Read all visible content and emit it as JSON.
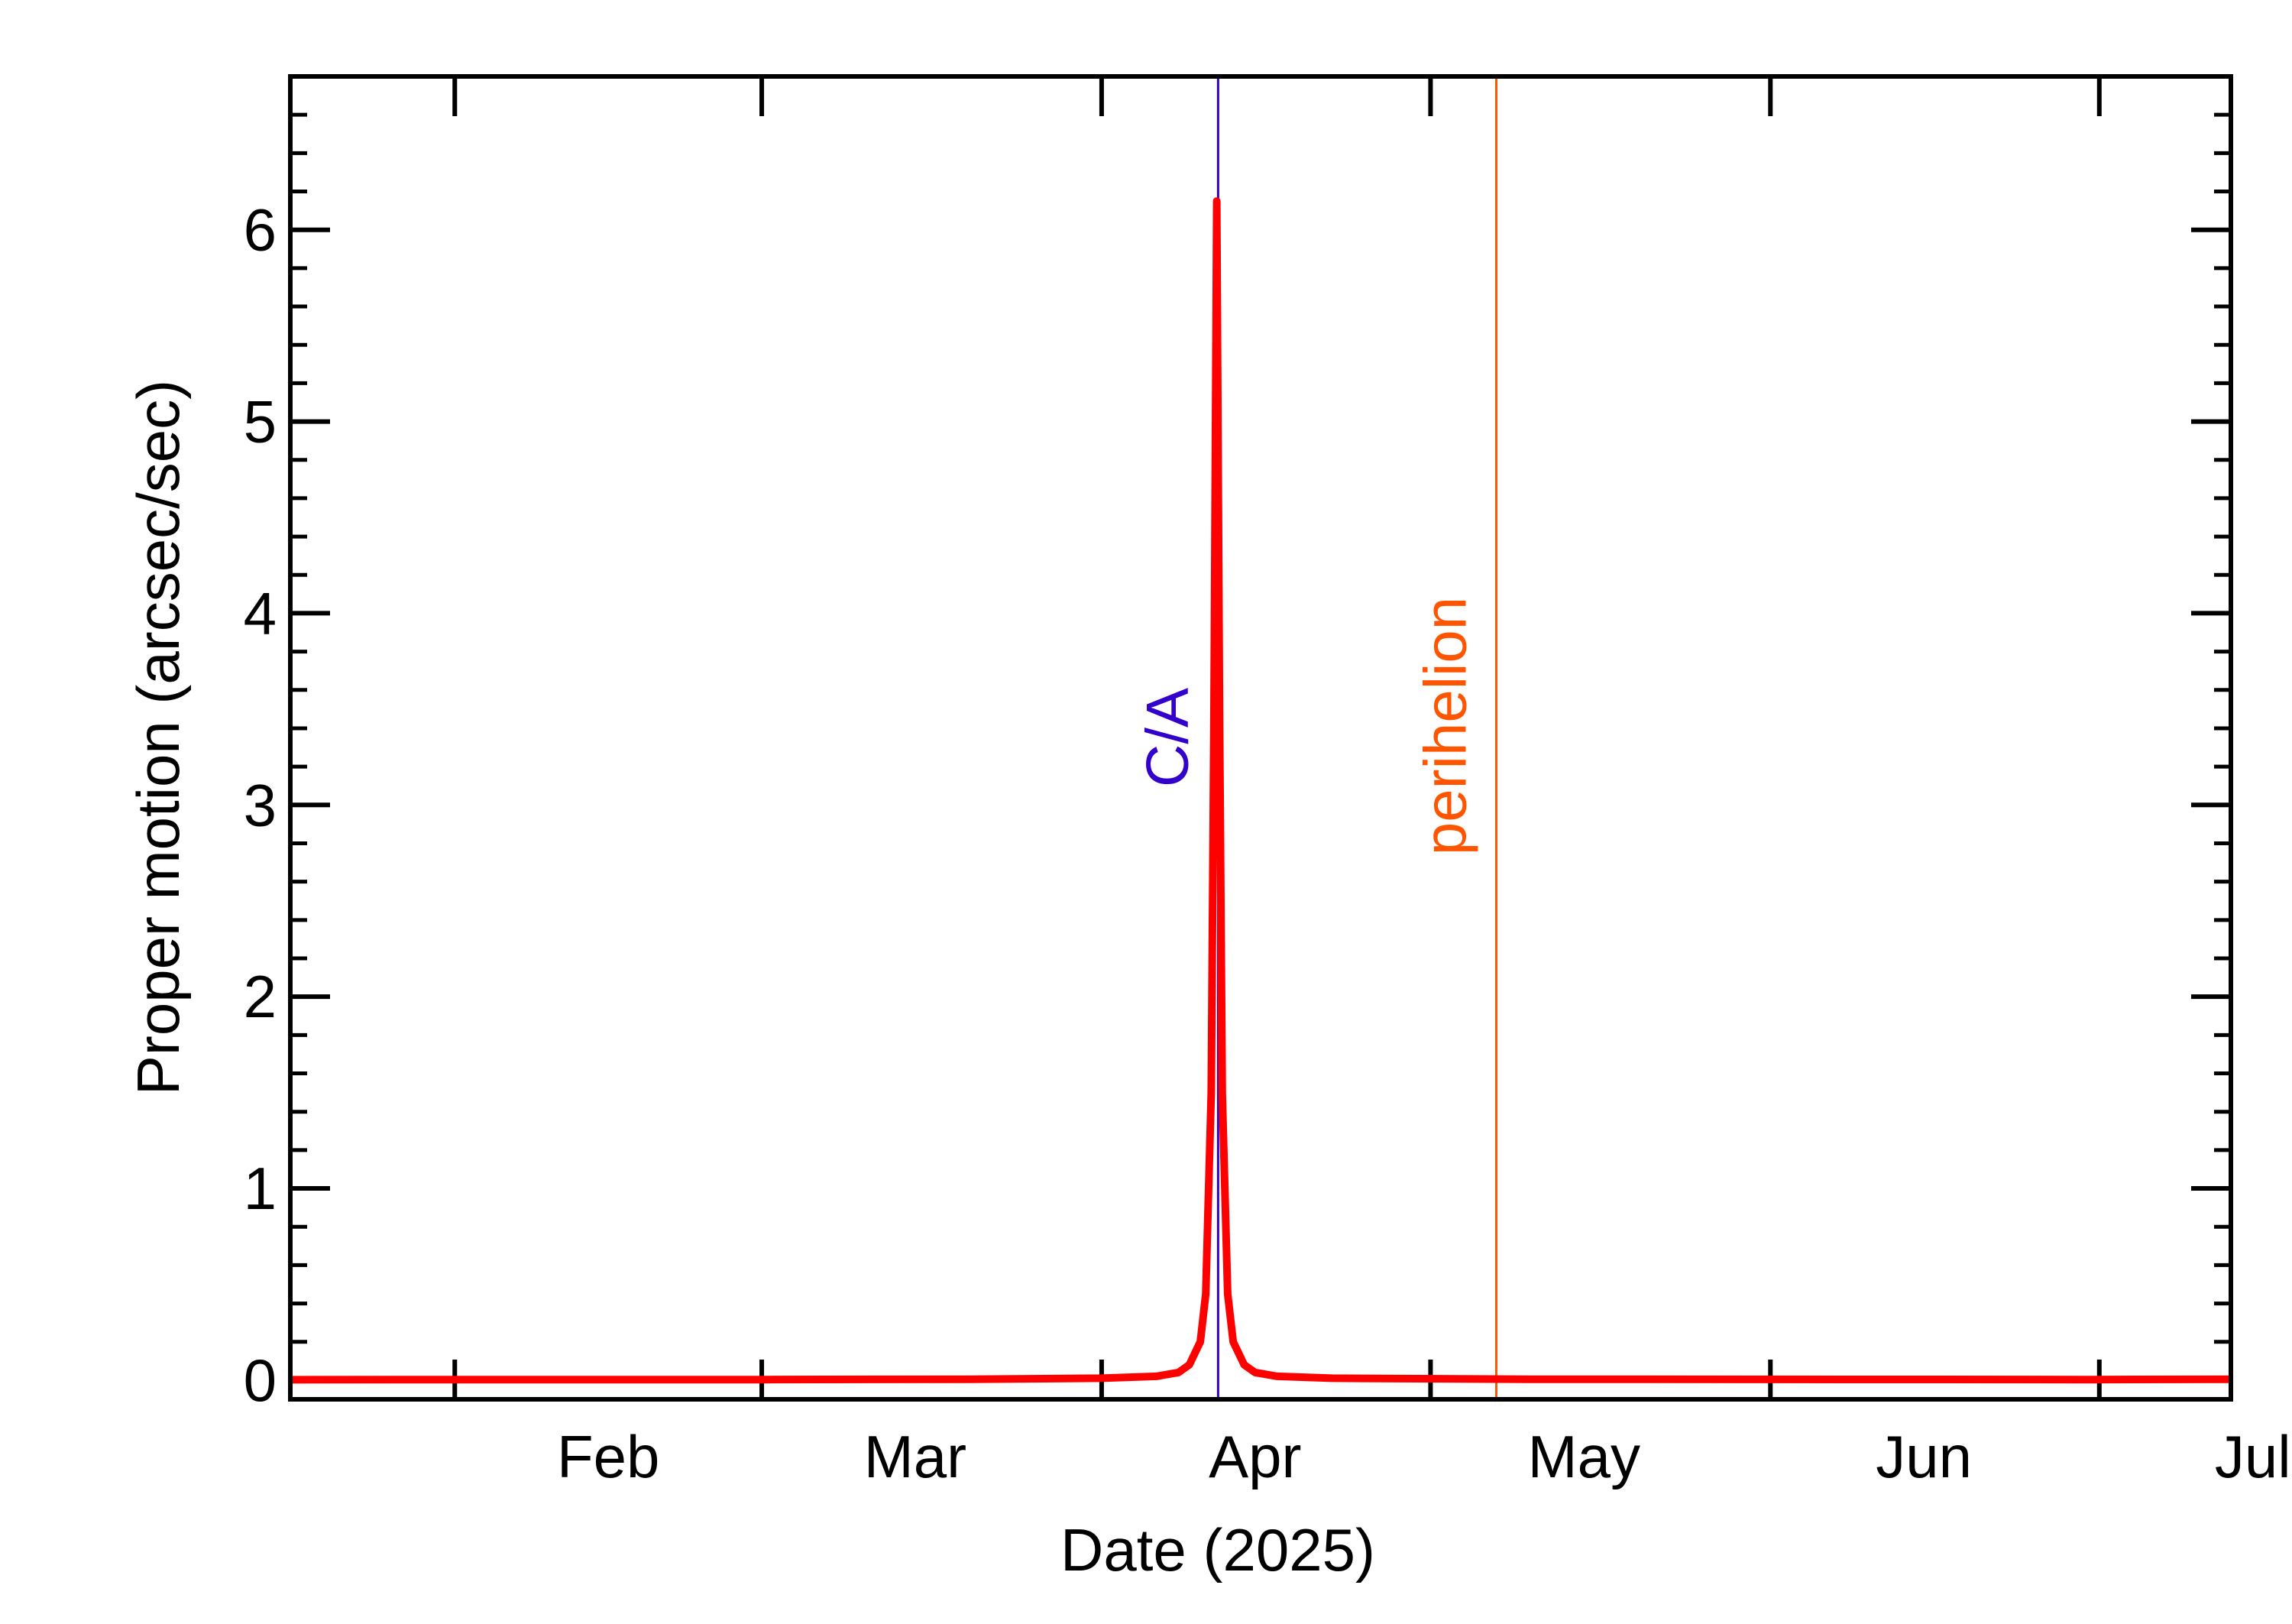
{
  "chart_data": {
    "type": "line",
    "title": "",
    "xlabel": "Date (2025)",
    "ylabel": "Proper motion (arcsec/sec)",
    "x_unit": "date",
    "xlim": [
      "2025-01-17",
      "2025-07-13"
    ],
    "ylim": [
      -0.1,
      6.8
    ],
    "x_major_ticks": [
      "2025-01-01",
      "2025-02-01",
      "2025-03-01",
      "2025-04-01",
      "2025-05-01",
      "2025-06-01",
      "2025-07-01"
    ],
    "x_tick_labels": [
      {
        "label": "Feb",
        "date": "2025-02-15"
      },
      {
        "label": "Mar",
        "date": "2025-03-15"
      },
      {
        "label": "Apr",
        "date": "2025-04-15"
      },
      {
        "label": "May",
        "date": "2025-05-15"
      },
      {
        "label": "Jun",
        "date": "2025-06-15"
      },
      {
        "label": "Jul",
        "date": "2025-07-15"
      }
    ],
    "y_ticks": [
      0,
      1,
      2,
      3,
      4,
      5,
      6
    ],
    "y_tick_labels": [
      "0",
      "1",
      "2",
      "3",
      "4",
      "5",
      "6"
    ],
    "y_minor_step": 0.2,
    "grid": false,
    "legend": "none",
    "series": [
      {
        "color": "#ff0000",
        "points": [
          [
            "2025-01-17",
            0.002
          ],
          [
            "2025-02-01",
            0.003
          ],
          [
            "2025-03-01",
            0.003
          ],
          [
            "2025-03-20",
            0.005
          ],
          [
            "2025-04-01",
            0.01
          ],
          [
            "2025-04-06",
            0.02
          ],
          [
            "2025-04-08",
            0.04
          ],
          [
            "2025-04-09",
            0.08
          ],
          [
            "2025-04-10",
            0.2
          ],
          [
            "2025-04-10T12:00",
            0.45
          ],
          [
            "2025-04-11",
            1.5
          ],
          [
            "2025-04-11T06:00",
            3.5
          ],
          [
            "2025-04-11T12:00",
            6.15
          ],
          [
            "2025-04-11T18:00",
            3.5
          ],
          [
            "2025-04-12",
            1.5
          ],
          [
            "2025-04-12T12:00",
            0.45
          ],
          [
            "2025-04-13",
            0.2
          ],
          [
            "2025-04-14",
            0.08
          ],
          [
            "2025-04-15",
            0.04
          ],
          [
            "2025-04-17",
            0.02
          ],
          [
            "2025-04-22",
            0.01
          ],
          [
            "2025-05-10",
            0.005
          ],
          [
            "2025-06-01",
            0.004
          ],
          [
            "2025-06-30",
            0.003
          ],
          [
            "2025-07-13",
            0.005
          ]
        ]
      }
    ],
    "annotations": [
      {
        "label": "C/A",
        "date": "2025-04-11T15:00",
        "color": "#3300cc"
      },
      {
        "label": "perihelion",
        "date": "2025-05-07",
        "color": "#ff5500"
      }
    ]
  }
}
